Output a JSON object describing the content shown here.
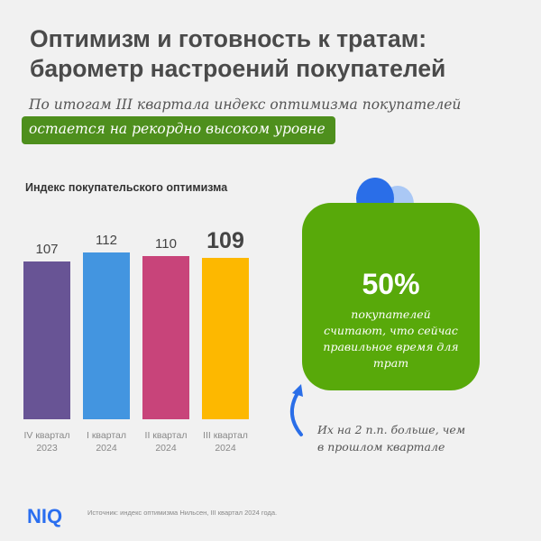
{
  "header": {
    "title_line1": "Оптимизм и готовность к тратам:",
    "title_line2": "барометр настроений покупателей",
    "subtitle_line1": "По итогам III квартала индекс оптимизма покупателей",
    "subtitle_highlight": "остается на рекордно высоком уровне",
    "highlight_color": "#4e8f1d"
  },
  "chart_data": {
    "type": "bar",
    "title": "Индекс покупательского оптимизма",
    "categories": [
      [
        "IV квартал",
        "2023"
      ],
      [
        "I квартал",
        "2024"
      ],
      [
        "II квартал",
        "2024"
      ],
      [
        "III квартал",
        "2024"
      ]
    ],
    "values": [
      107,
      112,
      110,
      109
    ],
    "colors": [
      "#685495",
      "#4395e0",
      "#c8447a",
      "#fdb800"
    ],
    "highlight_index": 3,
    "ylim": [
      20,
      115
    ],
    "grid": false
  },
  "callout": {
    "percent": "50%",
    "text_lines": [
      "покупателей",
      "считают, что сейчас",
      "правильное время для",
      "трат"
    ],
    "color": "#58a90a"
  },
  "note": {
    "line1": "Их на 2 п.п. больше, чем",
    "line2": "в прошлом квартале"
  },
  "footer": {
    "logo": "NIQ",
    "source": "Источник: индекс оптимизма Нильсен, III квартал 2024 года."
  }
}
